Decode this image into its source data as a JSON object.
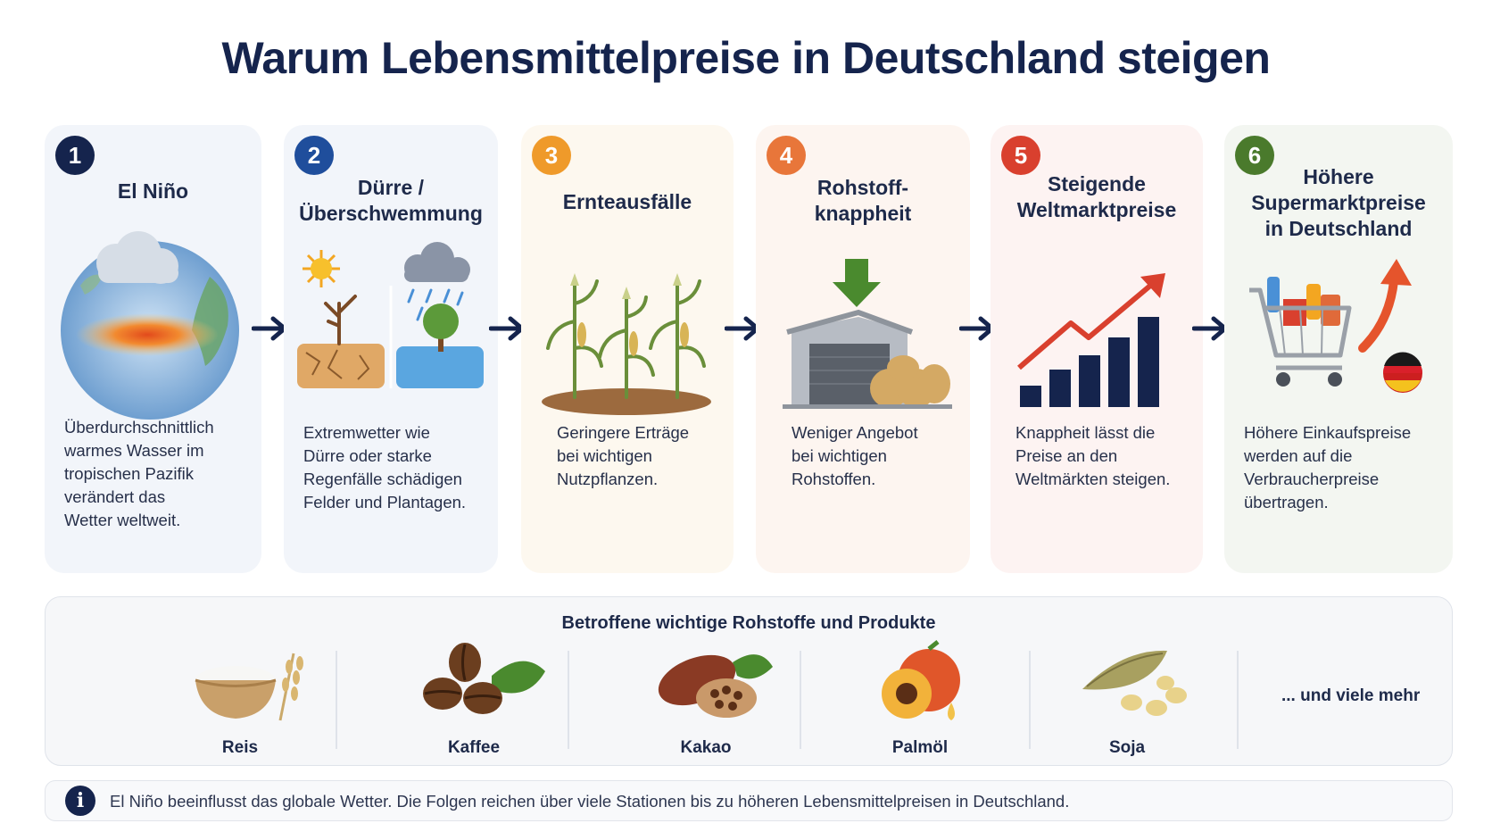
{
  "title": "Warum Lebensmittelpreise in Deutschland steigen",
  "steps": [
    {
      "number": "1",
      "title_lines": [
        "El Niño"
      ],
      "description_lines": [
        "Überdurchschnittlich",
        "warmes Wasser im",
        "tropischen Pazifik",
        "verändert das",
        "Wetter weltweit."
      ],
      "badge_color": "#15244d",
      "bg_color": "#f2f5fa"
    },
    {
      "number": "2",
      "title_lines": [
        "Dürre /",
        "Überschwemmung"
      ],
      "description_lines": [
        "Extremwetter wie",
        "Dürre oder starke",
        "Regenfälle schädigen",
        "Felder und Plantagen."
      ],
      "badge_color": "#1f4e9c",
      "bg_color": "#f2f5fa"
    },
    {
      "number": "3",
      "title_lines": [
        "Ernteausfälle"
      ],
      "description_lines": [
        "Geringere Erträge",
        "bei wichtigen",
        "Nutzpflanzen."
      ],
      "badge_color": "#ef9a2a",
      "bg_color": "#fdf8ef"
    },
    {
      "number": "4",
      "title_lines": [
        "Rohstoff-",
        "knappheit"
      ],
      "description_lines": [
        "Weniger Angebot",
        "bei wichtigen",
        "Rohstoffen."
      ],
      "badge_color": "#e8763a",
      "bg_color": "#fdf5f0"
    },
    {
      "number": "5",
      "title_lines": [
        "Steigende",
        "Weltmarktpreise"
      ],
      "description_lines": [
        "Knappheit lässt die",
        "Preise an den",
        "Weltmärkten steigen."
      ],
      "badge_color": "#d9402e",
      "bg_color": "#fdf3f2"
    },
    {
      "number": "6",
      "title_lines": [
        "Höhere",
        "Supermarktpreise",
        "in Deutschland"
      ],
      "description_lines": [
        "Höhere Einkaufspreise",
        "werden auf die",
        "Verbraucherpreise",
        "übertragen."
      ],
      "badge_color": "#4a7a2c",
      "bg_color": "#f3f6f1"
    }
  ],
  "products": {
    "title": "Betroffene wichtige Rohstoffe und Produkte",
    "items": [
      "Reis",
      "Kaffee",
      "Kakao",
      "Palmöl",
      "Soja"
    ],
    "more": "... und viele mehr"
  },
  "info": {
    "icon": "i",
    "text": "El Niño beeinflusst das globale Wetter. Die Folgen reichen über viele Stationen bis zu höheren Lebensmittelpreisen in Deutschland."
  },
  "icons": [
    "globe-icon",
    "drought-flood-icon",
    "corn-field-icon",
    "warehouse-icon",
    "rising-chart-icon",
    "shopping-cart-icon",
    "rice-icon",
    "coffee-icon",
    "cocoa-icon",
    "palm-fruit-icon",
    "soy-icon",
    "info-icon",
    "arrow-right-icon"
  ]
}
